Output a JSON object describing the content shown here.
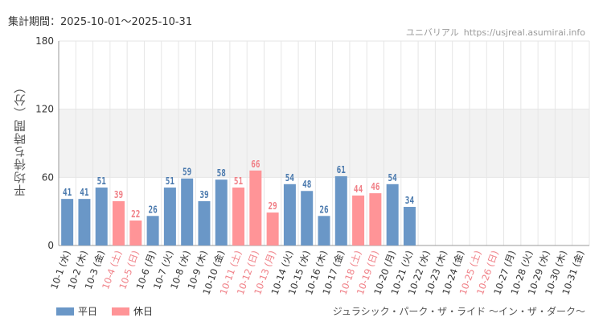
{
  "header": {
    "period": "集計期間：2025-10-01～2025-10-31",
    "site_name": "ユニバリアル",
    "site_url": "https://usjreal.asumirai.info"
  },
  "footer": {
    "attraction": "ジュラシック・パーク・ザ・ライド ～イン・ザ・ダーク～"
  },
  "colors": {
    "weekday": "#6a97c7",
    "holiday": "#ff9497",
    "holiday_text": "#f07f86",
    "weekday_text": "#4a79ad",
    "band": "#f2f2f2",
    "grid": "#e6e6e6"
  },
  "chart_data": {
    "type": "bar",
    "ylabel": "平均待ち時間（分）",
    "ylim": [
      0,
      180
    ],
    "yticks": [
      0,
      60,
      120,
      180
    ],
    "band": [
      60,
      120
    ],
    "grid": true,
    "legend_position": "bottom-left",
    "series": [
      {
        "name": "平日",
        "color": "#6a97c7"
      },
      {
        "name": "休日",
        "color": "#ff9497"
      }
    ],
    "categories": [
      {
        "label": "10-1 (水)",
        "value": 41,
        "type": "平日"
      },
      {
        "label": "10-2 (木)",
        "value": 41,
        "type": "平日"
      },
      {
        "label": "10-3 (金)",
        "value": 51,
        "type": "平日"
      },
      {
        "label": "10-4 (土)",
        "value": 39,
        "type": "休日"
      },
      {
        "label": "10-5 (日)",
        "value": 22,
        "type": "休日"
      },
      {
        "label": "10-6 (月)",
        "value": 26,
        "type": "平日"
      },
      {
        "label": "10-7 (火)",
        "value": 51,
        "type": "平日"
      },
      {
        "label": "10-8 (水)",
        "value": 59,
        "type": "平日"
      },
      {
        "label": "10-9 (木)",
        "value": 39,
        "type": "平日"
      },
      {
        "label": "10-10 (金)",
        "value": 58,
        "type": "平日"
      },
      {
        "label": "10-11 (土)",
        "value": 51,
        "type": "休日"
      },
      {
        "label": "10-12 (日)",
        "value": 66,
        "type": "休日"
      },
      {
        "label": "10-13 (月)",
        "value": 29,
        "type": "休日"
      },
      {
        "label": "10-14 (火)",
        "value": 54,
        "type": "平日"
      },
      {
        "label": "10-15 (水)",
        "value": 48,
        "type": "平日"
      },
      {
        "label": "10-16 (木)",
        "value": 26,
        "type": "平日"
      },
      {
        "label": "10-17 (金)",
        "value": 61,
        "type": "平日"
      },
      {
        "label": "10-18 (土)",
        "value": 44,
        "type": "休日"
      },
      {
        "label": "10-19 (日)",
        "value": 46,
        "type": "休日"
      },
      {
        "label": "10-20 (月)",
        "value": 54,
        "type": "平日"
      },
      {
        "label": "10-21 (火)",
        "value": 34,
        "type": "平日"
      },
      {
        "label": "10-22 (水)",
        "value": null,
        "type": "平日"
      },
      {
        "label": "10-23 (木)",
        "value": null,
        "type": "平日"
      },
      {
        "label": "10-24 (金)",
        "value": null,
        "type": "平日"
      },
      {
        "label": "10-25 (土)",
        "value": null,
        "type": "休日"
      },
      {
        "label": "10-26 (日)",
        "value": null,
        "type": "休日"
      },
      {
        "label": "10-27 (月)",
        "value": null,
        "type": "平日"
      },
      {
        "label": "10-28 (火)",
        "value": null,
        "type": "平日"
      },
      {
        "label": "10-29 (水)",
        "value": null,
        "type": "平日"
      },
      {
        "label": "10-30 (木)",
        "value": null,
        "type": "平日"
      },
      {
        "label": "10-31 (金)",
        "value": null,
        "type": "平日"
      }
    ]
  }
}
